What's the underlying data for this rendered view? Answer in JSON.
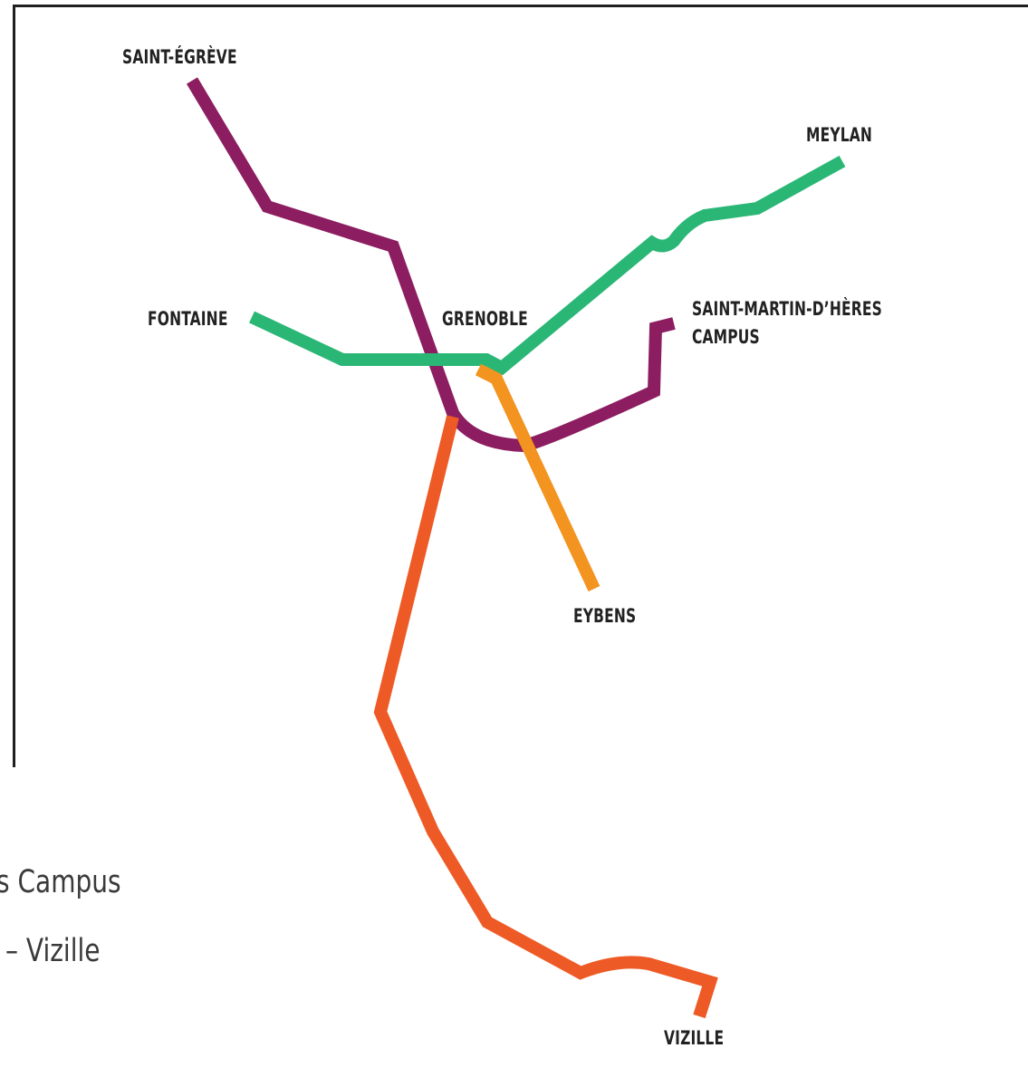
{
  "colors": {
    "purple_line": "#8c1d60",
    "green_line": "#2ab776",
    "orange_line": "#f39320",
    "red_orange_line": "#ee5a26",
    "label_text": "#222222",
    "frame": "#1f1f1f"
  },
  "labels": {
    "saint_egreve": "SAINT-ÉGRÈVE",
    "meylan": "MEYLAN",
    "fontaine": "FONTAINE",
    "grenoble": "GRENOBLE",
    "smh_line1": "SAINT-MARTIN-D’HÈRES",
    "smh_line2": "CAMPUS",
    "eybens": "EYBENS",
    "vizille": "VIZILLE"
  },
  "legend": {
    "line1": "s Campus",
    "line2": "– Vizille"
  }
}
